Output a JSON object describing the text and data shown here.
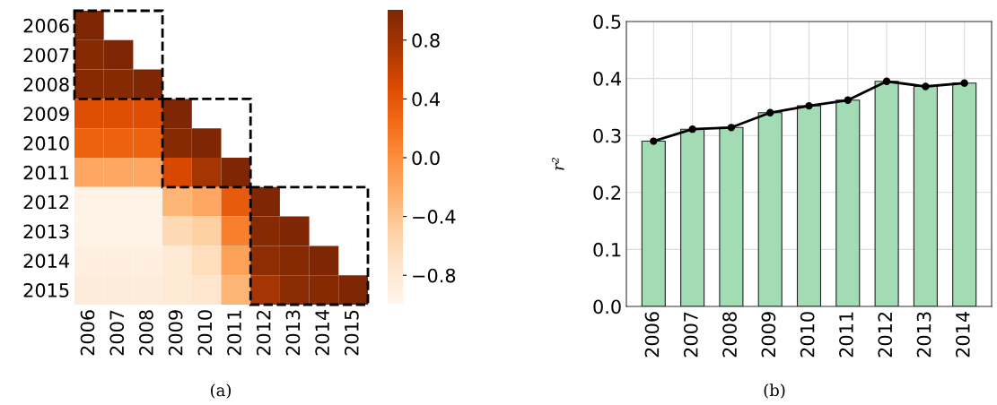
{
  "chart_data": [
    {
      "type": "heatmap",
      "categories": [
        "2006",
        "2007",
        "2008",
        "2009",
        "2010",
        "2011",
        "2012",
        "2013",
        "2014",
        "2015"
      ],
      "y_categories": [
        "2006",
        "2007",
        "2008",
        "2009",
        "2010",
        "2011",
        "2012",
        "2013",
        "2014",
        "2015"
      ],
      "cells": [
        [
          1,
          null,
          null,
          null,
          null,
          null,
          null,
          null,
          null,
          null
        ],
        [
          0.95,
          1,
          null,
          null,
          null,
          null,
          null,
          null,
          null,
          null
        ],
        [
          0.95,
          0.95,
          1,
          null,
          null,
          null,
          null,
          null,
          null,
          null
        ],
        [
          0.45,
          0.45,
          0.45,
          1,
          null,
          null,
          null,
          null,
          null,
          null
        ],
        [
          0.3,
          0.3,
          0.3,
          0.95,
          1,
          null,
          null,
          null,
          null,
          null
        ],
        [
          -0.2,
          -0.2,
          -0.2,
          0.5,
          0.75,
          1,
          null,
          null,
          null,
          null
        ],
        [
          -0.95,
          -0.95,
          -0.95,
          -0.3,
          -0.2,
          0.35,
          1,
          null,
          null,
          null
        ],
        [
          -0.95,
          -0.95,
          -0.95,
          -0.6,
          -0.5,
          0.1,
          0.95,
          1,
          null,
          null
        ],
        [
          -0.9,
          -0.9,
          -0.9,
          -0.8,
          -0.65,
          -0.15,
          0.9,
          0.95,
          1,
          null
        ],
        [
          -0.85,
          -0.85,
          -0.85,
          -0.8,
          -0.75,
          -0.3,
          0.75,
          0.92,
          0.95,
          1
        ]
      ],
      "clim": [
        -1,
        1
      ],
      "cticks": [
        {
          "value": -0.8,
          "label": "−0.8"
        },
        {
          "value": -0.4,
          "label": "−0.4"
        },
        {
          "value": 0.0,
          "label": "0.0"
        },
        {
          "value": 0.4,
          "label": "0.4"
        },
        {
          "value": 0.8,
          "label": "0.8"
        }
      ],
      "annotations": [
        "(a)"
      ]
    },
    {
      "type": "bar",
      "categories": [
        "2006",
        "2007",
        "2008",
        "2009",
        "2010",
        "2011",
        "2012",
        "2013",
        "2014"
      ],
      "series": [
        {
          "type": "bar",
          "color": "#a3dbb5",
          "values": [
            0.29,
            0.311,
            0.314,
            0.34,
            0.352,
            0.362,
            0.395,
            0.386,
            0.392
          ]
        },
        {
          "type": "line",
          "color": "#000000",
          "marker": "circle",
          "values": [
            0.29,
            0.311,
            0.314,
            0.34,
            0.352,
            0.362,
            0.395,
            0.386,
            0.392
          ]
        }
      ],
      "ylim": [
        0,
        0.5
      ],
      "yticks": [
        {
          "value": 0,
          "label": "0.0"
        },
        0.1,
        0.2,
        0.3,
        0.4,
        0.5
      ],
      "ylabel": "r²",
      "grid": true,
      "annotations": [
        "(b)"
      ]
    }
  ]
}
